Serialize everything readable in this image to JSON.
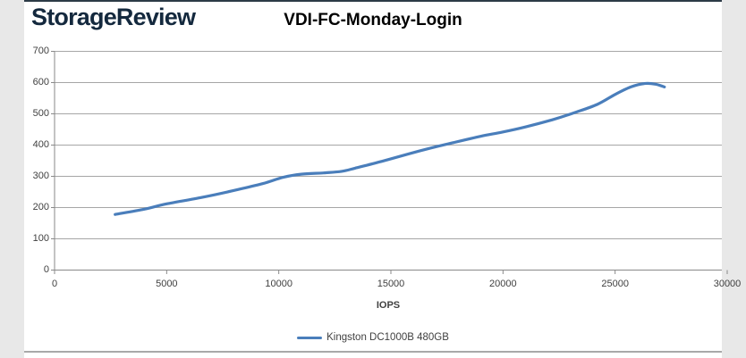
{
  "page": {
    "logo_text": "StorageReview",
    "accent_color": "#14293e",
    "top_border_color": "#2c3b46",
    "bottom_rule_color": "#a9a9a9"
  },
  "chart_data": {
    "type": "line",
    "title": "VDI-FC-Monday-Login",
    "xlabel": "IOPS",
    "ylabel": "",
    "xlim": [
      0,
      30000
    ],
    "ylim": [
      0,
      700
    ],
    "x_ticks": [
      0,
      5000,
      10000,
      15000,
      20000,
      25000,
      30000
    ],
    "y_ticks": [
      0,
      100,
      200,
      300,
      400,
      500,
      600,
      700
    ],
    "grid": "horizontal-only",
    "gridline_color": "#a6a6a6",
    "axis_color": "#898989",
    "legend_position": "bottom-center",
    "series": [
      {
        "name": "Kingston DC1000B 480GB",
        "color": "#4a7ebb",
        "points": [
          [
            2700,
            178
          ],
          [
            4000,
            195
          ],
          [
            5000,
            212
          ],
          [
            6600,
            233
          ],
          [
            8200,
            258
          ],
          [
            9300,
            277
          ],
          [
            10200,
            297
          ],
          [
            11000,
            307
          ],
          [
            12000,
            311
          ],
          [
            12800,
            316
          ],
          [
            13400,
            326
          ],
          [
            14600,
            348
          ],
          [
            15800,
            372
          ],
          [
            16800,
            391
          ],
          [
            17800,
            408
          ],
          [
            19000,
            428
          ],
          [
            20000,
            442
          ],
          [
            21000,
            458
          ],
          [
            22200,
            481
          ],
          [
            23200,
            504
          ],
          [
            24200,
            530
          ],
          [
            25000,
            562
          ],
          [
            25700,
            586
          ],
          [
            26300,
            597
          ],
          [
            26800,
            595
          ],
          [
            27200,
            586
          ]
        ]
      }
    ]
  }
}
